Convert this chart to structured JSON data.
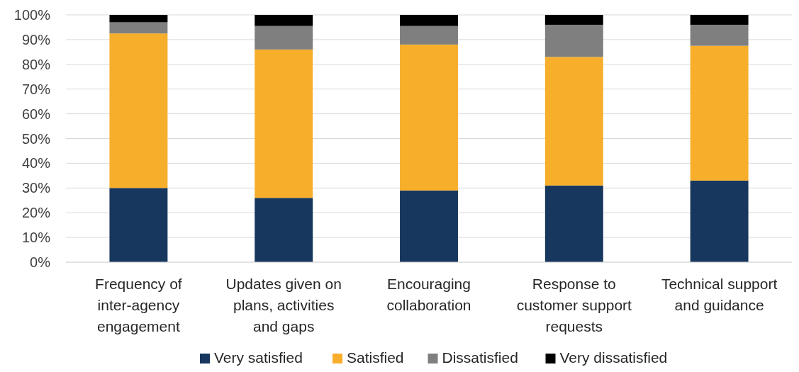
{
  "chart_data": {
    "type": "bar",
    "stacked": true,
    "categories": [
      "Frequency of inter-agency engagement",
      "Updates given on plans, activities and gaps",
      "Encouraging collaboration",
      "Response to customer support requests",
      "Technical support and guidance"
    ],
    "series": [
      {
        "name": "Very satisfied",
        "color": "#17375e",
        "values": [
          30,
          26,
          29,
          31,
          33
        ]
      },
      {
        "name": "Satisfied",
        "color": "#f7ae2b",
        "values": [
          62.5,
          60,
          59,
          52,
          54.5
        ]
      },
      {
        "name": "Dissatisfied",
        "color": "#7f7f7f",
        "values": [
          4.5,
          9.5,
          7.5,
          13,
          8.5
        ]
      },
      {
        "name": "Very dissatisfied",
        "color": "#000000",
        "values": [
          3,
          4.5,
          4.5,
          4,
          4
        ]
      }
    ],
    "ylim": [
      0,
      100
    ],
    "yticks": [
      {
        "value": 0,
        "label": "0%"
      },
      {
        "value": 10,
        "label": "10%"
      },
      {
        "value": 20,
        "label": "20%"
      },
      {
        "value": 30,
        "label": "30%"
      },
      {
        "value": 40,
        "label": "40%"
      },
      {
        "value": 50,
        "label": "50%"
      },
      {
        "value": 60,
        "label": "60%"
      },
      {
        "value": 70,
        "label": "70%"
      },
      {
        "value": 80,
        "label": "80%"
      },
      {
        "value": 90,
        "label": "90%"
      },
      {
        "value": 100,
        "label": "100%"
      }
    ],
    "grid": "y",
    "legend": "bottom"
  }
}
